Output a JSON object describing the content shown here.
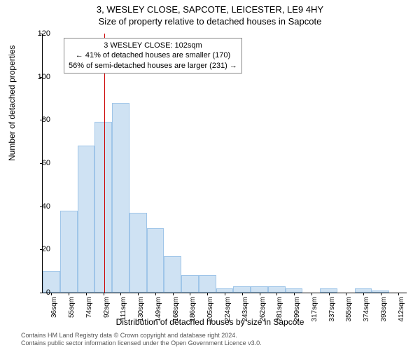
{
  "title_main": "3, WESLEY CLOSE, SAPCOTE, LEICESTER, LE9 4HY",
  "title_sub": "Size of property relative to detached houses in Sapcote",
  "ylabel": "Number of detached properties",
  "xlabel": "Distribution of detached houses by size in Sapcote",
  "chart": {
    "type": "histogram",
    "bar_color": "#cfe2f3",
    "bar_border": "#9fc5e8",
    "vline_color": "#cc0000",
    "background_color": "#ffffff",
    "ylim": [
      0,
      120
    ],
    "ytick_step": 20,
    "yticks": [
      0,
      20,
      40,
      60,
      80,
      100,
      120
    ],
    "xticks": [
      "36sqm",
      "55sqm",
      "74sqm",
      "92sqm",
      "111sqm",
      "130sqm",
      "149sqm",
      "168sqm",
      "186sqm",
      "205sqm",
      "224sqm",
      "243sqm",
      "262sqm",
      "281sqm",
      "299sqm",
      "317sqm",
      "337sqm",
      "355sqm",
      "374sqm",
      "393sqm",
      "412sqm"
    ],
    "values": [
      10,
      38,
      68,
      79,
      88,
      37,
      30,
      17,
      8,
      8,
      2,
      3,
      3,
      3,
      2,
      0,
      2,
      0,
      2,
      1,
      0
    ],
    "marker_index": 3.55
  },
  "callout": {
    "line1": "3 WESLEY CLOSE: 102sqm",
    "line2": "← 41% of detached houses are smaller (170)",
    "line3": "56% of semi-detached houses are larger (231) →"
  },
  "attribution": {
    "line1": "Contains HM Land Registry data © Crown copyright and database right 2024.",
    "line2": "Contains public sector information licensed under the Open Government Licence v3.0."
  }
}
